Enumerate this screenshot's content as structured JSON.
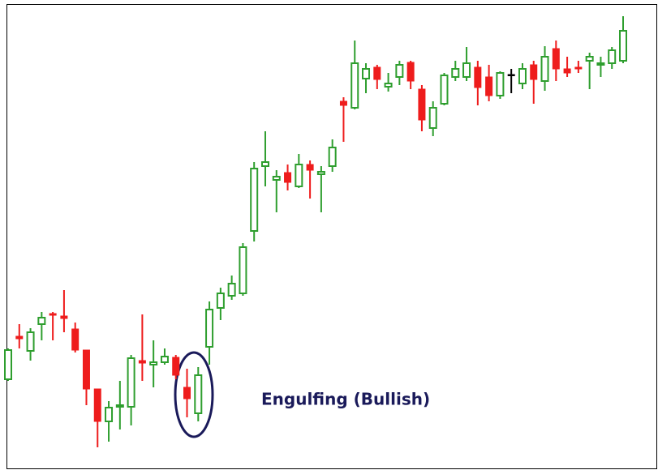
{
  "chart_data": {
    "type": "candlestick",
    "annotation": "Engulfing (Bullish)",
    "ylim": [
      0,
      580
    ],
    "open": [
      112,
      165,
      147,
      180,
      193,
      190,
      174,
      148,
      100,
      60,
      78,
      78,
      135,
      130,
      133,
      139,
      102,
      70,
      152,
      200,
      215,
      218,
      295,
      375,
      358,
      367,
      350,
      377,
      365,
      375,
      455,
      447,
      483,
      497,
      473,
      485,
      503,
      470,
      422,
      452,
      485,
      485,
      497,
      485,
      462,
      488,
      477,
      500,
      480,
      520,
      495,
      497,
      505,
      500,
      502,
      505
    ],
    "high": [
      150,
      180,
      175,
      195,
      195,
      222,
      182,
      148,
      100,
      85,
      110,
      142,
      192,
      160,
      150,
      142,
      125,
      127,
      208,
      225,
      240,
      280,
      380,
      418,
      370,
      377,
      390,
      382,
      375,
      408,
      460,
      530,
      502,
      500,
      490,
      505,
      505,
      475,
      455,
      490,
      505,
      522,
      505,
      500,
      492,
      495,
      502,
      505,
      523,
      530,
      510,
      505,
      515,
      510,
      522,
      560
    ],
    "low": [
      110,
      150,
      135,
      160,
      160,
      170,
      145,
      80,
      28,
      35,
      50,
      55,
      110,
      102,
      130,
      112,
      65,
      60,
      130,
      185,
      210,
      215,
      282,
      350,
      318,
      345,
      348,
      335,
      318,
      368,
      405,
      445,
      465,
      470,
      467,
      475,
      470,
      418,
      412,
      450,
      480,
      480,
      450,
      455,
      458,
      465,
      470,
      452,
      468,
      480,
      485,
      490,
      470,
      485,
      495,
      502
    ],
    "close": [
      148,
      162,
      170,
      188,
      191,
      187,
      148,
      100,
      60,
      77,
      80,
      138,
      132,
      133,
      140,
      117,
      88,
      117,
      198,
      218,
      230,
      275,
      372,
      380,
      362,
      355,
      377,
      370,
      368,
      398,
      450,
      502,
      495,
      482,
      477,
      500,
      480,
      432,
      447,
      487,
      495,
      502,
      472,
      462,
      490,
      488,
      495,
      482,
      510,
      495,
      490,
      495,
      510,
      502,
      518,
      542
    ],
    "colors": [
      "#2e9e2e",
      "#ee1c1c",
      "#2e9e2e",
      "#2e9e2e",
      "#ee1c1c",
      "#ee1c1c",
      "#ee1c1c",
      "#ee1c1c",
      "#ee1c1c",
      "#2e9e2e",
      "#2e9e2e",
      "#2e9e2e",
      "#ee1c1c",
      "#2e9e2e",
      "#2e9e2e",
      "#ee1c1c",
      "#ee1c1c",
      "#2e9e2e",
      "#2e9e2e",
      "#2e9e2e",
      "#2e9e2e",
      "#2e9e2e",
      "#2e9e2e",
      "#2e9e2e",
      "#2e9e2e",
      "#ee1c1c",
      "#2e9e2e",
      "#ee1c1c",
      "#2e9e2e",
      "#2e9e2e",
      "#ee1c1c",
      "#2e9e2e",
      "#2e9e2e",
      "#ee1c1c",
      "#2e9e2e",
      "#2e9e2e",
      "#ee1c1c",
      "#ee1c1c",
      "#2e9e2e",
      "#2e9e2e",
      "#2e9e2e",
      "#2e9e2e",
      "#ee1c1c",
      "#ee1c1c",
      "#2e9e2e",
      "#000000",
      "#2e9e2e",
      "#ee1c1c",
      "#2e9e2e",
      "#ee1c1c",
      "#ee1c1c",
      "#ee1c1c",
      "#2e9e2e",
      "#2e9e2e",
      "#2e9e2e",
      "#2e9e2e"
    ]
  }
}
